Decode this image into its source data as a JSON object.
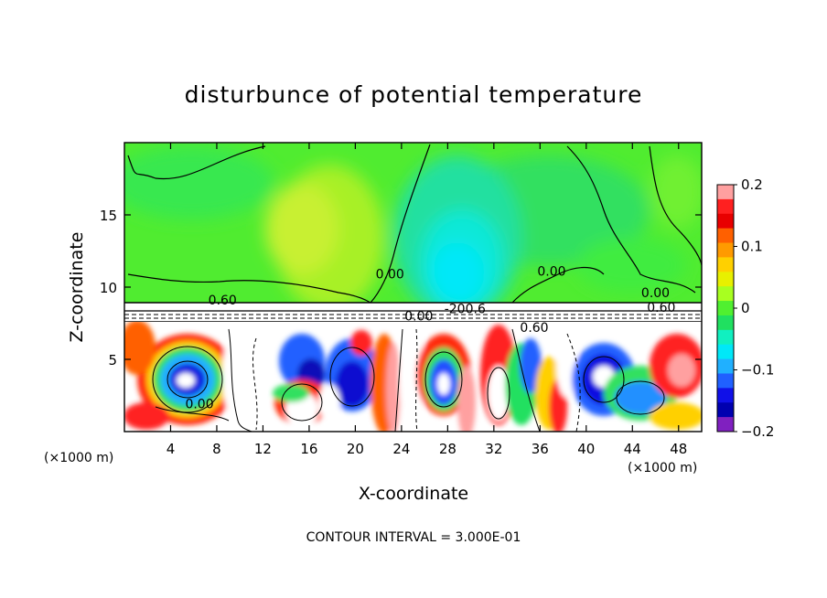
{
  "chart_data": {
    "type": "heatmap",
    "title": "disturbunce of potential temperature",
    "xlabel": "X-coordinate",
    "ylabel": "Z-coordinate",
    "x_unit_left": "(×1000 m)",
    "x_unit_right": "(×1000 m)",
    "xlim": [
      0,
      50
    ],
    "ylim": [
      0,
      20
    ],
    "x_ticks": [
      4,
      8,
      12,
      16,
      20,
      24,
      28,
      32,
      36,
      40,
      44,
      48
    ],
    "y_ticks": [
      5,
      10,
      15
    ],
    "footer": "CONTOUR INTERVAL = 3.000E-01",
    "colorbar": {
      "min": -0.2,
      "max": 0.2,
      "ticks": [
        "0.2",
        "0.1",
        "0",
        "−0.1",
        "−0.2"
      ],
      "tick_values": [
        0.2,
        0.1,
        0,
        -0.1,
        -0.2
      ],
      "colors": [
        "#ffa0a0",
        "#ff2020",
        "#e80000",
        "#ff6000",
        "#ff9a00",
        "#ffd000",
        "#e8f000",
        "#a8ff20",
        "#50f030",
        "#20e060",
        "#10f0c0",
        "#00e8f8",
        "#20b0ff",
        "#2060ff",
        "#1010e8",
        "#0000b0",
        "#8020c0"
      ]
    },
    "contour_labels": [
      {
        "text": "0.60",
        "x": 8.5,
        "y": 8.8
      },
      {
        "text": "0.00",
        "x": 23.0,
        "y": 10.6
      },
      {
        "text": "0.00",
        "x": 25.5,
        "y": 7.7
      },
      {
        "text": "-200.6",
        "x": 29.5,
        "y": 8.2
      },
      {
        "text": "0.00",
        "x": 37.0,
        "y": 10.8
      },
      {
        "text": "0.00",
        "x": 46.0,
        "y": 9.3
      },
      {
        "text": "0.60",
        "x": 46.5,
        "y": 8.3
      },
      {
        "text": "0.60",
        "x": 35.5,
        "y": 6.9
      },
      {
        "text": "0.00",
        "x": 6.5,
        "y": 1.6
      }
    ]
  }
}
